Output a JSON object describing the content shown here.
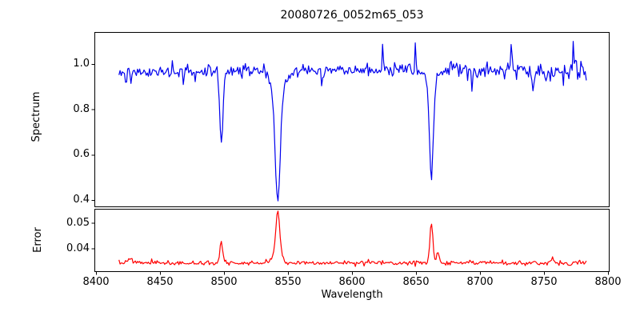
{
  "figure": {
    "title": "20080726_0052m65_053",
    "background": "#ffffff",
    "axis_color": "#000000",
    "text_color": "#000000"
  },
  "chart_data": [
    {
      "type": "line",
      "panel": "spectrum",
      "title": "20080726_0052m65_053",
      "ylabel": "Spectrum",
      "line_color": "#0000ee",
      "xlim": [
        8398.8,
        8801.2
      ],
      "ylim": [
        0.368,
        1.141
      ],
      "yticks": {
        "values": [
          0.4,
          0.6,
          0.8,
          1.0
        ],
        "labels": [
          "0.4",
          "0.6",
          "0.8",
          "1.0"
        ]
      },
      "grid": false,
      "legend": null,
      "data_model": {
        "x_start": 8418,
        "x_end": 8783,
        "n_points": 430,
        "continuum_level": 0.965,
        "noise_sigma_left": 0.014,
        "noise_sigma_mid": 0.012,
        "noise_sigma_right": 0.021,
        "absorption_lines": [
          {
            "center": 8498,
            "depth": 0.32,
            "width": 1.3,
            "name": "Ca II 8498"
          },
          {
            "center": 8542,
            "depth": 0.5,
            "width": 2.0,
            "wing_depth": 0.075,
            "wing_width": 6,
            "name": "Ca II 8542"
          },
          {
            "center": 8662,
            "depth": 0.42,
            "width": 1.5,
            "wing_depth": 0.06,
            "wing_width": 3.5,
            "name": "Ca II 8662"
          }
        ],
        "spikes": [
          {
            "x": 8460,
            "dy": 0.05
          },
          {
            "x": 8531,
            "dy": 0.05
          },
          {
            "x": 8624,
            "dy": 0.125
          },
          {
            "x": 8649,
            "dy": 0.1
          },
          {
            "x": 8724,
            "dy": 0.135
          },
          {
            "x": 8773,
            "dy": 0.115
          },
          {
            "x": 8468,
            "dy": -0.07
          },
          {
            "x": 8576,
            "dy": -0.06
          },
          {
            "x": 8694,
            "dy": -0.09
          },
          {
            "x": 8741,
            "dy": -0.09
          }
        ],
        "seed": 42
      },
      "key_points_read_from_plot": {
        "continuum": 0.97,
        "minima": [
          {
            "x": 8498,
            "y": 0.65
          },
          {
            "x": 8542,
            "y": 0.41
          },
          {
            "x": 8662,
            "y": 0.5
          }
        ]
      }
    },
    {
      "type": "line",
      "panel": "error",
      "ylabel": "Error",
      "xlabel": "Wavelength",
      "line_color": "#ff0000",
      "xlim": [
        8398.8,
        8801.2
      ],
      "ylim": [
        0.0308,
        0.0555
      ],
      "yticks": {
        "values": [
          0.04,
          0.05
        ],
        "labels": [
          "0.04",
          "0.05"
        ]
      },
      "xticks": {
        "values": [
          8400,
          8450,
          8500,
          8550,
          8600,
          8650,
          8700,
          8750,
          8800
        ],
        "labels": [
          "8400",
          "8450",
          "8500",
          "8550",
          "8600",
          "8650",
          "8700",
          "8750",
          "8800"
        ]
      },
      "grid": false,
      "legend": null,
      "data_model": {
        "x_start": 8418,
        "x_end": 8783,
        "n_points": 430,
        "baseline": 0.0343,
        "noise_sigma": 0.00045,
        "peaks": [
          {
            "center": 8498,
            "height": 0.0085,
            "width": 1.1
          },
          {
            "center": 8542,
            "height": 0.0175,
            "width": 1.5,
            "wing_height": 0.003,
            "wing_width": 4
          },
          {
            "center": 8662,
            "height": 0.0155,
            "width": 1.2
          },
          {
            "center": 8667,
            "height": 0.004,
            "width": 1.0
          },
          {
            "center": 8427,
            "height": 0.0018,
            "width": 2.0
          },
          {
            "center": 8756,
            "height": 0.0015,
            "width": 1.5
          }
        ],
        "seed": 7
      },
      "key_points_read_from_plot": {
        "baseline": 0.0345,
        "peaks": [
          {
            "x": 8498,
            "y": 0.043
          },
          {
            "x": 8542,
            "y": 0.0546
          },
          {
            "x": 8662,
            "y": 0.0505
          }
        ]
      }
    }
  ]
}
